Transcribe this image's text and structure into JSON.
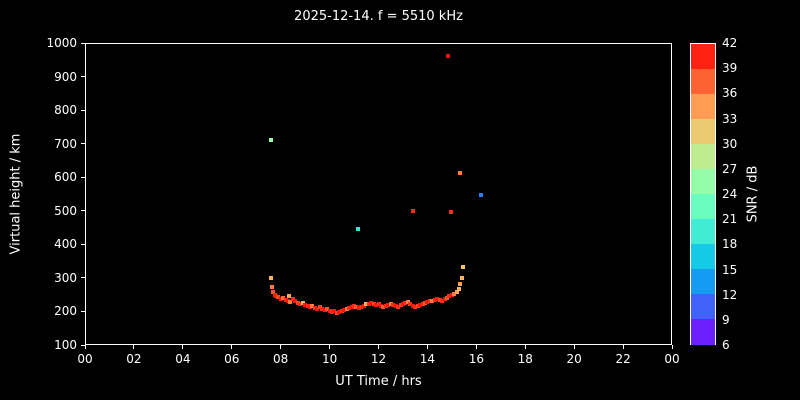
{
  "chart_data": {
    "type": "scatter",
    "title": "2025-12-14. f = 5510 kHz",
    "xlabel": "UT Time / hrs",
    "ylabel": "Virtual height / km",
    "xlim": [
      0,
      24
    ],
    "ylim": [
      100,
      1000
    ],
    "grid": false,
    "background": "#000000",
    "foreground": "#ffffff",
    "xticks": {
      "values": [
        0,
        2,
        4,
        6,
        8,
        10,
        12,
        14,
        16,
        18,
        20,
        22,
        24
      ],
      "labels": [
        "00",
        "02",
        "04",
        "06",
        "08",
        "10",
        "12",
        "14",
        "16",
        "18",
        "20",
        "22",
        "00"
      ]
    },
    "yticks": {
      "values": [
        100,
        200,
        300,
        400,
        500,
        600,
        700,
        800,
        900,
        1000
      ],
      "labels": [
        "100",
        "200",
        "300",
        "400",
        "500",
        "600",
        "700",
        "800",
        "900",
        "1000"
      ]
    },
    "colorbar": {
      "label": "SNR / dB",
      "min": 6,
      "max": 42,
      "ticks": [
        42,
        39,
        36,
        33,
        30,
        27,
        24,
        21,
        18,
        15,
        12,
        9,
        6
      ]
    },
    "points_format": [
      "time_hrs",
      "virtual_height_km",
      "snr_db"
    ],
    "points": [
      [
        7.6,
        300,
        33
      ],
      [
        7.65,
        272,
        36
      ],
      [
        7.7,
        258,
        38
      ],
      [
        7.75,
        250,
        40
      ],
      [
        7.8,
        246,
        41
      ],
      [
        7.9,
        242,
        39
      ],
      [
        8.0,
        238,
        41
      ],
      [
        8.1,
        241,
        37
      ],
      [
        8.2,
        235,
        40
      ],
      [
        8.3,
        232,
        41
      ],
      [
        8.35,
        245,
        34
      ],
      [
        8.4,
        228,
        36
      ],
      [
        8.5,
        236,
        40
      ],
      [
        8.6,
        230,
        41
      ],
      [
        8.7,
        226,
        39
      ],
      [
        8.8,
        222,
        40
      ],
      [
        8.9,
        226,
        33
      ],
      [
        9.0,
        218,
        41
      ],
      [
        9.1,
        215,
        40
      ],
      [
        9.2,
        212,
        41
      ],
      [
        9.3,
        216,
        36
      ],
      [
        9.4,
        210,
        40
      ],
      [
        9.5,
        208,
        41
      ],
      [
        9.6,
        213,
        39
      ],
      [
        9.7,
        206,
        40
      ],
      [
        9.8,
        203,
        41
      ],
      [
        9.9,
        206,
        38
      ],
      [
        10.0,
        200,
        41
      ],
      [
        10.1,
        198,
        40
      ],
      [
        10.2,
        200,
        41
      ],
      [
        10.3,
        196,
        39
      ],
      [
        10.4,
        198,
        41
      ],
      [
        10.5,
        201,
        40
      ],
      [
        10.6,
        204,
        41
      ],
      [
        10.7,
        208,
        36
      ],
      [
        10.8,
        211,
        40
      ],
      [
        10.9,
        213,
        41
      ],
      [
        11.0,
        216,
        40
      ],
      [
        11.1,
        212,
        38
      ],
      [
        11.2,
        210,
        41
      ],
      [
        11.3,
        214,
        40
      ],
      [
        11.4,
        217,
        41
      ],
      [
        11.5,
        221,
        33
      ],
      [
        11.6,
        223,
        40
      ],
      [
        11.7,
        226,
        41
      ],
      [
        11.8,
        222,
        39
      ],
      [
        11.9,
        218,
        41
      ],
      [
        12.0,
        221,
        40
      ],
      [
        12.1,
        217,
        41
      ],
      [
        12.2,
        214,
        38
      ],
      [
        12.3,
        217,
        40
      ],
      [
        12.4,
        220,
        41
      ],
      [
        12.5,
        223,
        36
      ],
      [
        12.6,
        220,
        40
      ],
      [
        12.7,
        216,
        41
      ],
      [
        12.8,
        214,
        40
      ],
      [
        12.9,
        218,
        39
      ],
      [
        13.0,
        221,
        41
      ],
      [
        13.1,
        224,
        40
      ],
      [
        13.2,
        227,
        36
      ],
      [
        13.3,
        221,
        40
      ],
      [
        13.4,
        215,
        41
      ],
      [
        13.5,
        213,
        40
      ],
      [
        13.6,
        217,
        39
      ],
      [
        13.7,
        220,
        41
      ],
      [
        13.8,
        222,
        40
      ],
      [
        13.9,
        225,
        38
      ],
      [
        14.0,
        227,
        41
      ],
      [
        14.1,
        230,
        40
      ],
      [
        14.2,
        232,
        36
      ],
      [
        14.3,
        235,
        40
      ],
      [
        14.4,
        237,
        41
      ],
      [
        14.5,
        233,
        39
      ],
      [
        14.6,
        231,
        40
      ],
      [
        14.7,
        237,
        41
      ],
      [
        14.8,
        241,
        38
      ],
      [
        14.9,
        245,
        40
      ],
      [
        15.0,
        248,
        41
      ],
      [
        15.1,
        253,
        36
      ],
      [
        15.2,
        259,
        34
      ],
      [
        15.3,
        267,
        33
      ],
      [
        15.35,
        282,
        34
      ],
      [
        15.4,
        300,
        33
      ],
      [
        15.45,
        332,
        32
      ],
      [
        7.62,
        710,
        26
      ],
      [
        11.15,
        447,
        19
      ],
      [
        13.42,
        500,
        40
      ],
      [
        14.85,
        962,
        41
      ],
      [
        14.95,
        495,
        40
      ],
      [
        15.35,
        612,
        36
      ],
      [
        16.2,
        548,
        12
      ]
    ]
  }
}
